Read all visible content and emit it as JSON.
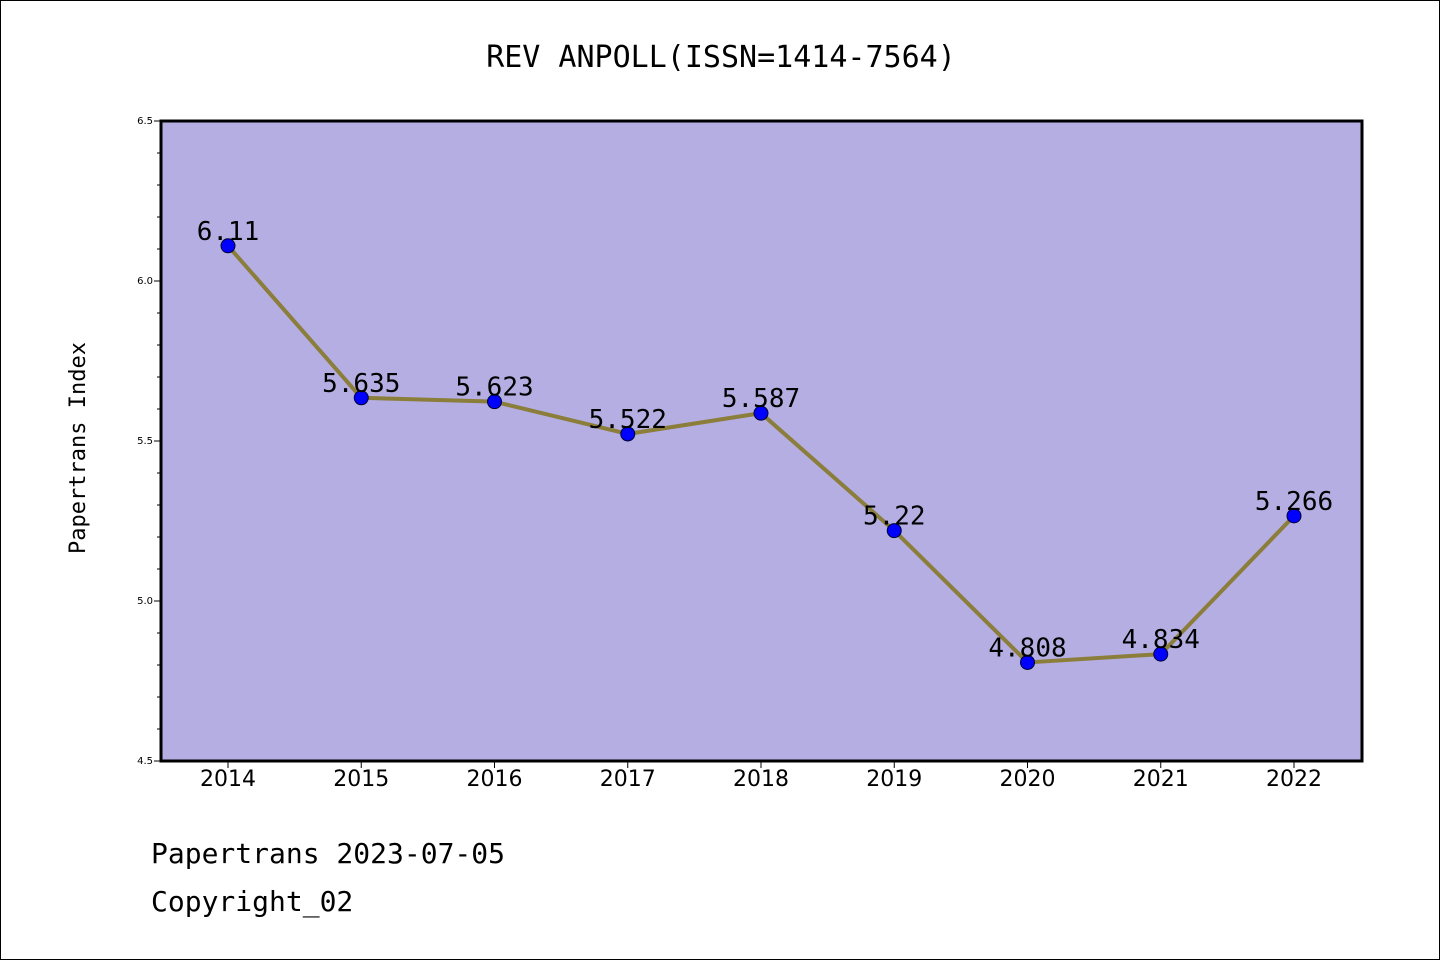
{
  "chart_data": {
    "type": "line",
    "title": "REV ANPOLL(ISSN=1414-7564)",
    "xlabel": "",
    "ylabel": "Papertrans Index",
    "ylim": [
      4.5,
      6.5
    ],
    "y_ticks": [
      "4.5",
      "5.0",
      "5.5",
      "6.0",
      "6.5"
    ],
    "categories": [
      "2014",
      "2015",
      "2016",
      "2017",
      "2018",
      "2019",
      "2020",
      "2021",
      "2022"
    ],
    "series": [
      {
        "values": [
          6.11,
          5.635,
          5.623,
          5.522,
          5.587,
          5.22,
          4.808,
          4.834,
          5.266
        ],
        "labels": [
          "6.11",
          "5.635",
          "5.623",
          "5.522",
          "5.587",
          "5.22",
          "4.808",
          "4.834",
          "5.266"
        ]
      }
    ],
    "grid": false,
    "colors": {
      "plot_background": "#b4aee3",
      "line": "#8b7d3a",
      "marker": "#0000ff"
    }
  },
  "footer": {
    "date_text": "Papertrans 2023-07-05",
    "copyright_text": "Copyright_02"
  }
}
